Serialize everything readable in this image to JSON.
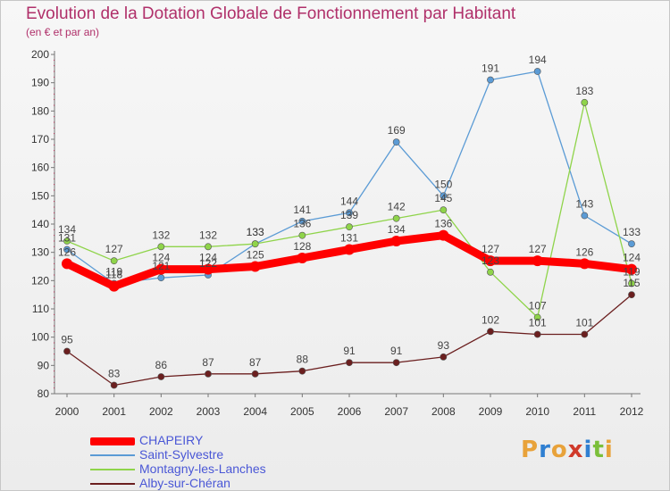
{
  "title": "Evolution de la Dotation Globale de Fonctionnement par Habitant",
  "subtitle": "(en € et par an)",
  "logo": {
    "letters": [
      "P",
      "r",
      "o",
      "x",
      "i",
      "t",
      "i"
    ],
    "colors": [
      "#e8a23a",
      "#2f7fd1",
      "#e8a23a",
      "#d03a2a",
      "#2f7fd1",
      "#7bbf3a",
      "#e8a23a"
    ]
  },
  "chart_data": {
    "type": "line",
    "x": [
      "2000",
      "2001",
      "2002",
      "2003",
      "2004",
      "2005",
      "2006",
      "2007",
      "2008",
      "2009",
      "2010",
      "2011",
      "2012"
    ],
    "ylim": [
      80,
      200
    ],
    "y_ticks": [
      "80",
      "90",
      "100",
      "110",
      "120",
      "130",
      "140",
      "150",
      "160",
      "170",
      "180",
      "190",
      "200"
    ],
    "grid": false,
    "legend_position": "bottom-left",
    "series": [
      {
        "name": "CHAPEIRY",
        "color": "#ff0000",
        "emphasis": true,
        "values": [
          126,
          118,
          124,
          124,
          125,
          128,
          131,
          134,
          136,
          127,
          127,
          126,
          124
        ]
      },
      {
        "name": "Saint-Sylvestre",
        "color": "#5b9bd5",
        "emphasis": false,
        "values": [
          131,
          119,
          121,
          122,
          133,
          141,
          144,
          169,
          150,
          191,
          194,
          143,
          133
        ]
      },
      {
        "name": "Montagny-les-Lanches",
        "color": "#8fd44a",
        "emphasis": false,
        "values": [
          134,
          127,
          132,
          132,
          133,
          136,
          139,
          142,
          145,
          123,
          107,
          183,
          119
        ]
      },
      {
        "name": "Alby-sur-Chéran",
        "color": "#6b1f1f",
        "emphasis": false,
        "values": [
          95,
          83,
          86,
          87,
          87,
          88,
          91,
          91,
          93,
          102,
          101,
          101,
          115
        ]
      }
    ]
  }
}
